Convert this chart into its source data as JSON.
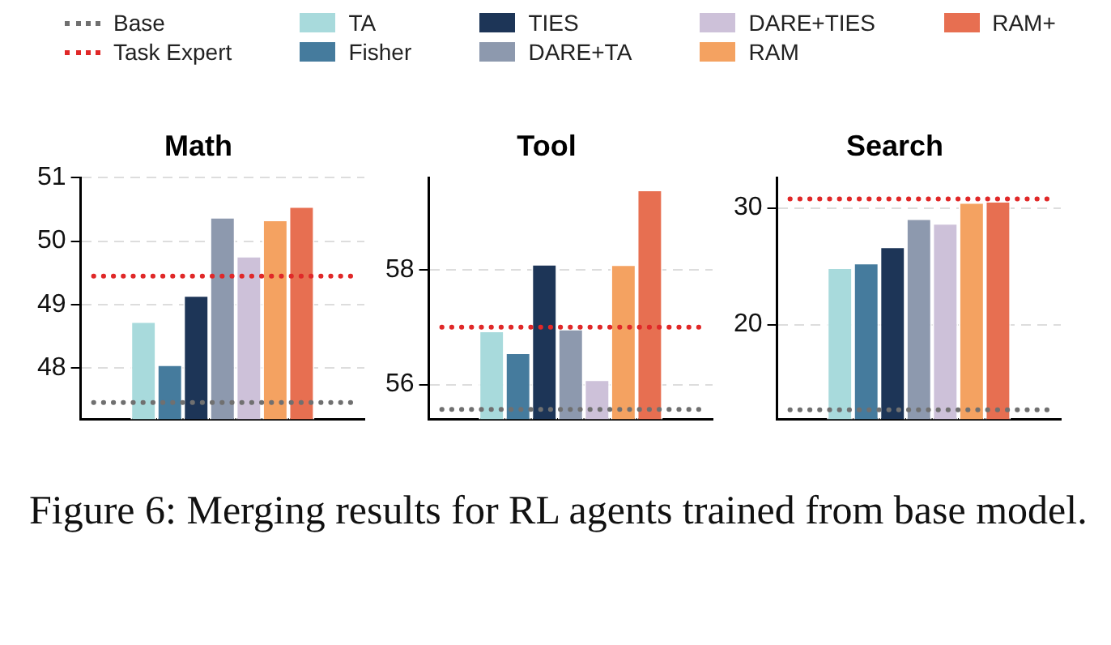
{
  "chart_data": [
    {
      "type": "bar",
      "title": "Math",
      "categories": [
        null
      ],
      "legend": "top",
      "grid": "y",
      "ylim": [
        47.2,
        51
      ],
      "yticks": [
        48,
        49,
        50,
        51
      ],
      "series": [
        {
          "name": "TA",
          "color": "#a8dadc",
          "values": [
            48.74
          ]
        },
        {
          "name": "Fisher",
          "color": "#457b9d",
          "values": [
            48.06
          ]
        },
        {
          "name": "TIES",
          "color": "#1d3557",
          "values": [
            49.15
          ]
        },
        {
          "name": "DARE+TA",
          "color": "#8d99ae",
          "values": [
            50.38
          ]
        },
        {
          "name": "DARE+TIES",
          "color": "#cdc1d9",
          "values": [
            49.77
          ]
        },
        {
          "name": "RAM",
          "color": "#f4a261",
          "values": [
            50.34
          ]
        },
        {
          "name": "RAM+",
          "color": "#e76f51",
          "values": [
            50.55
          ]
        }
      ],
      "ref_lines": [
        {
          "axis": "y",
          "value": 47.46,
          "label": "Base",
          "color": "#707070",
          "line_style": "dotted"
        },
        {
          "axis": "y",
          "value": 49.45,
          "label": "Task Expert",
          "color": "#e02828",
          "line_style": "dotted"
        }
      ]
    },
    {
      "type": "bar",
      "title": "Tool",
      "categories": [
        null
      ],
      "grid": "y",
      "ylim": [
        55.4,
        59.6
      ],
      "yticks": [
        56,
        58
      ],
      "series": [
        {
          "color": "#a8dadc",
          "values": [
            56.94
          ]
        },
        {
          "color": "#457b9d",
          "values": [
            56.56
          ]
        },
        {
          "color": "#1d3557",
          "values": [
            58.1
          ]
        },
        {
          "color": "#8d99ae",
          "values": [
            56.97
          ]
        },
        {
          "color": "#cdc1d9",
          "values": [
            56.09
          ]
        },
        {
          "color": "#f4a261",
          "values": [
            58.09
          ]
        },
        {
          "color": "#e76f51",
          "values": [
            59.39
          ]
        }
      ],
      "ref_lines": [
        {
          "axis": "y",
          "value": 55.57,
          "color": "#707070",
          "line_style": "dotted"
        },
        {
          "axis": "y",
          "value": 57.0,
          "color": "#e02828",
          "line_style": "dotted"
        }
      ]
    },
    {
      "type": "bar",
      "title": "Search",
      "categories": [
        null
      ],
      "grid": "y",
      "ylim": [
        11.9,
        32.6
      ],
      "yticks": [
        20,
        30
      ],
      "series": [
        {
          "color": "#a8dadc",
          "values": [
            24.9
          ]
        },
        {
          "color": "#457b9d",
          "values": [
            25.3
          ]
        },
        {
          "color": "#1d3557",
          "values": [
            26.7
          ]
        },
        {
          "color": "#8d99ae",
          "values": [
            29.1
          ]
        },
        {
          "color": "#cdc1d9",
          "values": [
            28.7
          ]
        },
        {
          "color": "#f4a261",
          "values": [
            30.5
          ]
        },
        {
          "color": "#e76f51",
          "values": [
            30.6
          ]
        }
      ],
      "ref_lines": [
        {
          "axis": "y",
          "value": 12.7,
          "color": "#707070",
          "line_style": "dotted"
        },
        {
          "axis": "y",
          "value": 30.77,
          "color": "#e02828",
          "line_style": "dotted"
        }
      ],
      "annotations": [
        "Figure 6: Merging results for RL agents trained from base model."
      ]
    }
  ]
}
